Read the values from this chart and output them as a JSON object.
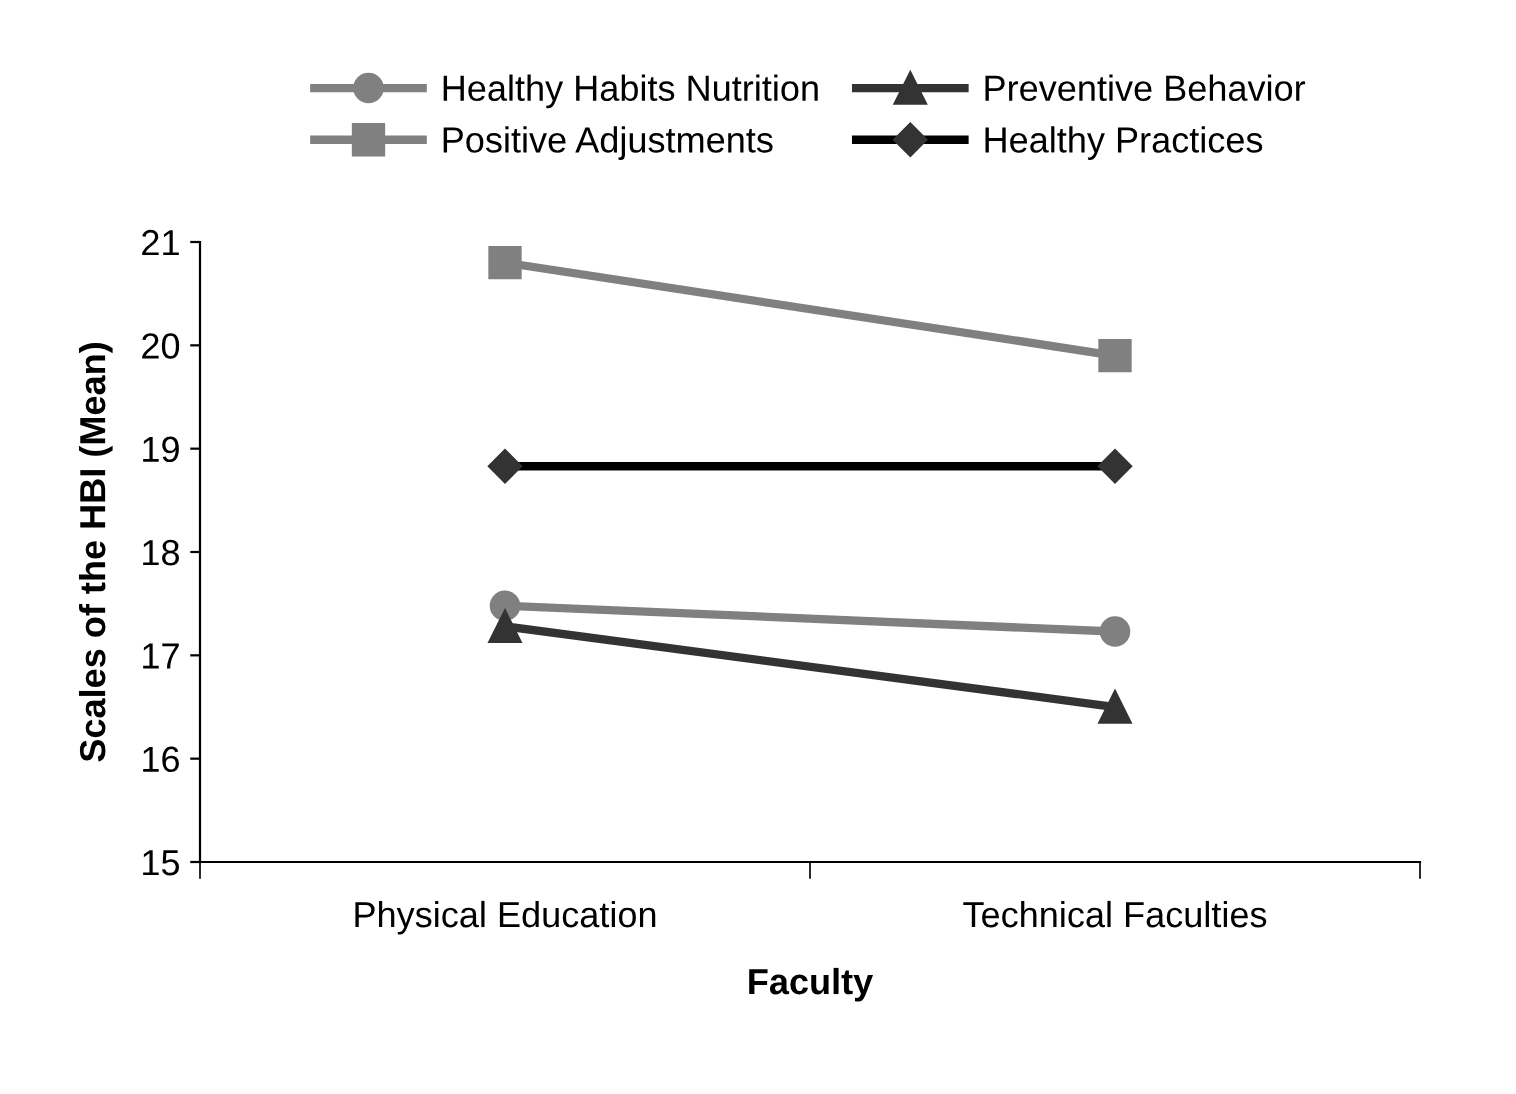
{
  "chart_data": {
    "type": "line",
    "xlabel": "Faculty",
    "ylabel": "Scales of the HBI (Mean)",
    "categories": [
      "Physical Education",
      "Technical Faculties"
    ],
    "series": [
      {
        "name": "Healthy Habits Nutrition",
        "color": "#808080",
        "marker": "circle",
        "values": [
          17.48,
          17.23
        ]
      },
      {
        "name": "Positive Adjustments",
        "color": "#808080",
        "marker": "square",
        "values": [
          20.8,
          19.9
        ]
      },
      {
        "name": "Preventive Behavior",
        "color": "#333333",
        "marker": "triangle",
        "values": [
          17.28,
          16.5
        ]
      },
      {
        "name": "Healthy Practices",
        "color": "#000000",
        "marker": "diamond",
        "values": [
          18.83,
          18.83
        ]
      }
    ],
    "ylim": [
      15,
      21
    ],
    "yticks": [
      15,
      16,
      17,
      18,
      19,
      20,
      21
    ],
    "grid": false,
    "legend": "top",
    "line_style": "solid"
  }
}
